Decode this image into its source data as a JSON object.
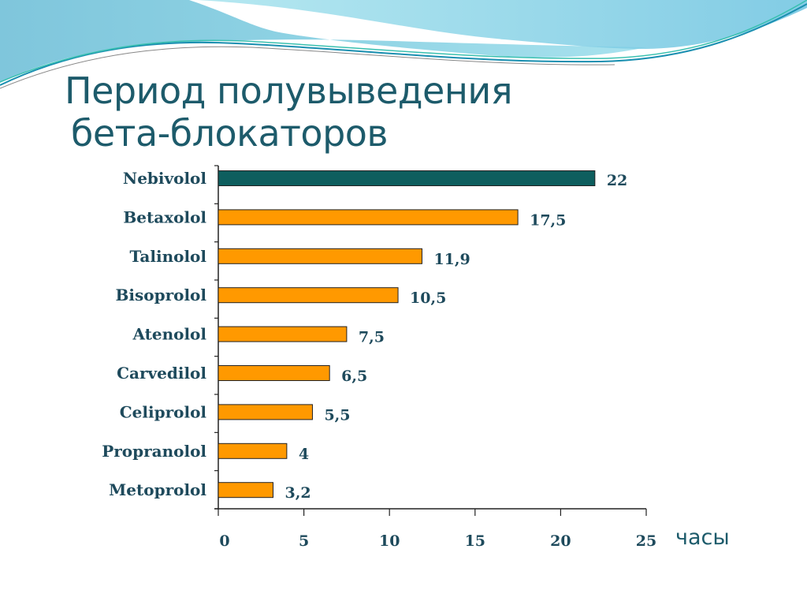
{
  "slide": {
    "title_line1": "Период полувыведения",
    "title_line2": "бета-блокаторов"
  },
  "chart_data": {
    "type": "bar",
    "orientation": "horizontal",
    "categories": [
      "Nebivolol",
      "Betaxolol",
      "Talinolol",
      "Bisoprolol",
      "Atenolol",
      "Carvedilol",
      "Celiprolol",
      "Propranolol",
      "Metoprolol"
    ],
    "values": [
      22,
      17.5,
      11.9,
      10.5,
      7.5,
      6.5,
      5.5,
      4,
      3.2
    ],
    "value_labels": [
      "22",
      "17,5",
      "11,9",
      "10,5",
      "7,5",
      "6,5",
      "5,5",
      "4",
      "3,2"
    ],
    "xlim": [
      0,
      25
    ],
    "xticks": [
      "0",
      "5",
      "10",
      "15",
      "20",
      "25"
    ],
    "xlabel": "часы",
    "grid": false,
    "colors": {
      "highlight": "#0e5e5e",
      "default": "#ff9900",
      "edge": "#222222"
    }
  }
}
